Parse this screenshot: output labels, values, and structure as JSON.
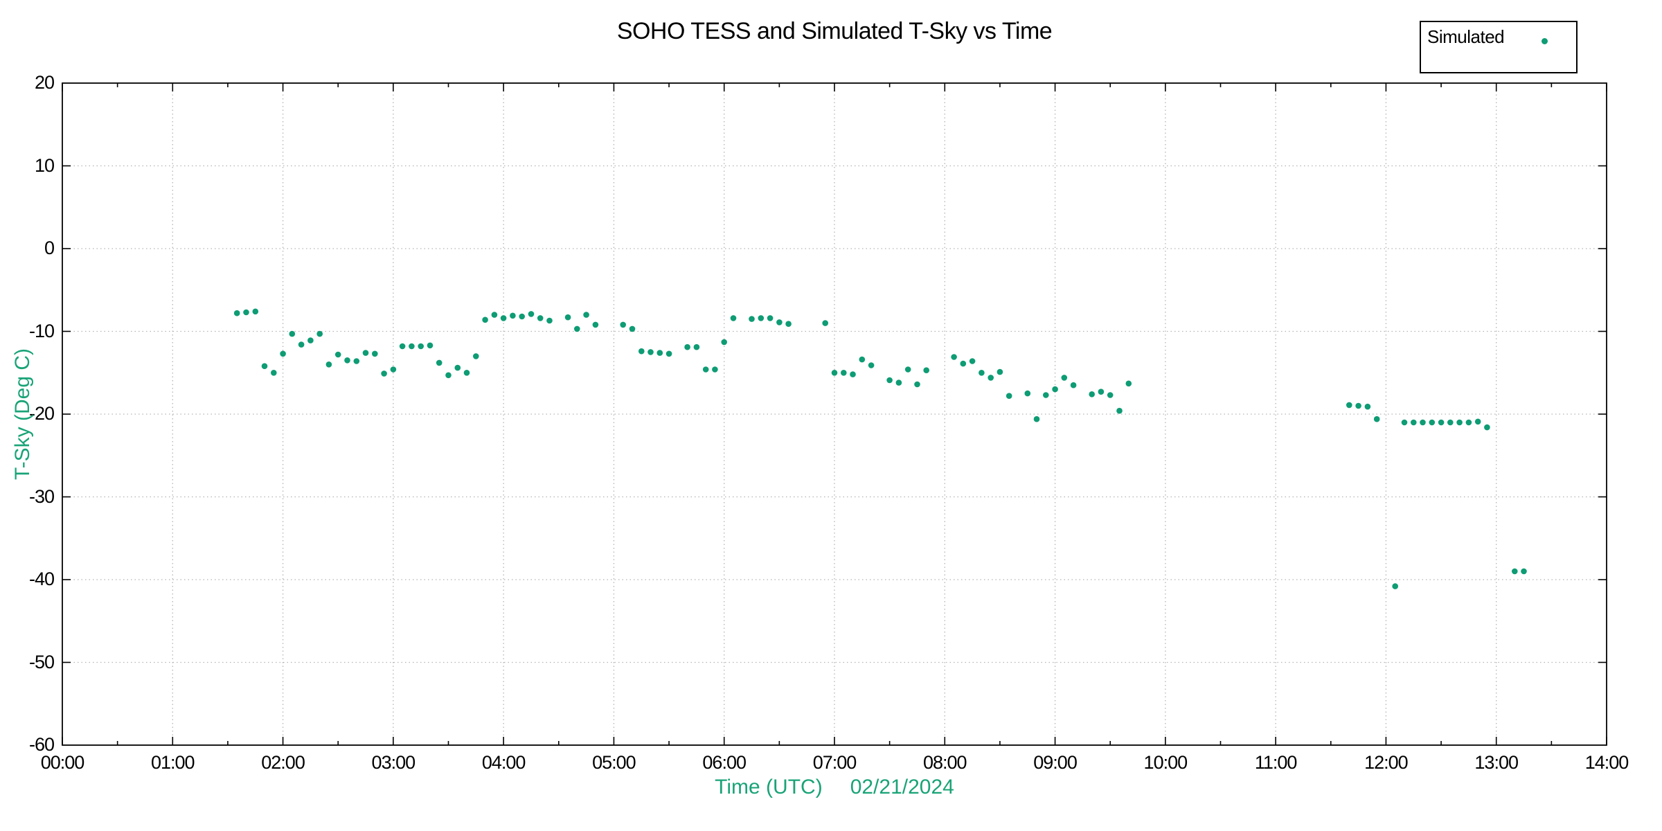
{
  "chart_data": {
    "type": "scatter",
    "title": "SOHO TESS and Simulated T-Sky vs Time",
    "xlabel": "Time (UTC)",
    "date_annotation": "02/21/2024",
    "ylabel": "T-Sky (Deg C)",
    "xlim_hours": [
      0,
      14
    ],
    "ylim": [
      -60,
      20
    ],
    "grid": true,
    "x_tick_labels": [
      "00:00",
      "01:00",
      "02:00",
      "03:00",
      "04:00",
      "05:00",
      "06:00",
      "07:00",
      "08:00",
      "09:00",
      "10:00",
      "11:00",
      "12:00",
      "13:00",
      "14:00"
    ],
    "y_tick_labels": [
      "20",
      "10",
      "0",
      "-10",
      "-20",
      "-30",
      "-40",
      "-50",
      "-60"
    ],
    "colors": {
      "points": "#0e9c74",
      "axis_label_green": "#19a377"
    },
    "legend": {
      "position": "top-right",
      "entries": [
        {
          "label": "Simulated",
          "marker": "dot",
          "color": "#0e9c74"
        }
      ]
    },
    "series": [
      {
        "name": "Simulated",
        "marker": "point",
        "color": "#0e9c74",
        "points": [
          [
            "01:35",
            -7.8
          ],
          [
            "01:40",
            -7.7
          ],
          [
            "01:45",
            -7.6
          ],
          [
            "01:50",
            -14.2
          ],
          [
            "01:55",
            -15.0
          ],
          [
            "02:00",
            -12.7
          ],
          [
            "02:05",
            -10.3
          ],
          [
            "02:10",
            -11.6
          ],
          [
            "02:15",
            -11.1
          ],
          [
            "02:20",
            -10.3
          ],
          [
            "02:25",
            -14.0
          ],
          [
            "02:30",
            -12.8
          ],
          [
            "02:35",
            -13.5
          ],
          [
            "02:40",
            -13.6
          ],
          [
            "02:45",
            -12.6
          ],
          [
            "02:50",
            -12.7
          ],
          [
            "02:55",
            -15.1
          ],
          [
            "03:00",
            -14.6
          ],
          [
            "03:05",
            -11.8
          ],
          [
            "03:10",
            -11.8
          ],
          [
            "03:15",
            -11.8
          ],
          [
            "03:20",
            -11.7
          ],
          [
            "03:25",
            -13.8
          ],
          [
            "03:30",
            -15.3
          ],
          [
            "03:35",
            -14.4
          ],
          [
            "03:40",
            -15.0
          ],
          [
            "03:45",
            -13.0
          ],
          [
            "03:50",
            -8.6
          ],
          [
            "03:55",
            -8.0
          ],
          [
            "04:00",
            -8.4
          ],
          [
            "04:05",
            -8.1
          ],
          [
            "04:10",
            -8.2
          ],
          [
            "04:15",
            -7.9
          ],
          [
            "04:20",
            -8.4
          ],
          [
            "04:25",
            -8.7
          ],
          [
            "04:35",
            -8.3
          ],
          [
            "04:40",
            -9.7
          ],
          [
            "04:45",
            -8.0
          ],
          [
            "04:50",
            -9.2
          ],
          [
            "05:05",
            -9.2
          ],
          [
            "05:10",
            -9.7
          ],
          [
            "05:15",
            -12.4
          ],
          [
            "05:20",
            -12.5
          ],
          [
            "05:25",
            -12.6
          ],
          [
            "05:30",
            -12.7
          ],
          [
            "05:40",
            -11.9
          ],
          [
            "05:45",
            -11.9
          ],
          [
            "05:50",
            -14.6
          ],
          [
            "05:55",
            -14.6
          ],
          [
            "06:00",
            -11.3
          ],
          [
            "06:05",
            -8.4
          ],
          [
            "06:15",
            -8.5
          ],
          [
            "06:20",
            -8.4
          ],
          [
            "06:25",
            -8.4
          ],
          [
            "06:30",
            -8.9
          ],
          [
            "06:35",
            -9.1
          ],
          [
            "06:55",
            -9.0
          ],
          [
            "07:00",
            -15.0
          ],
          [
            "07:05",
            -15.0
          ],
          [
            "07:10",
            -15.2
          ],
          [
            "07:15",
            -13.4
          ],
          [
            "07:20",
            -14.1
          ],
          [
            "07:30",
            -15.9
          ],
          [
            "07:35",
            -16.2
          ],
          [
            "07:40",
            -14.6
          ],
          [
            "07:45",
            -16.4
          ],
          [
            "07:50",
            -14.7
          ],
          [
            "08:05",
            -13.1
          ],
          [
            "08:10",
            -13.9
          ],
          [
            "08:15",
            -13.6
          ],
          [
            "08:20",
            -15.0
          ],
          [
            "08:25",
            -15.6
          ],
          [
            "08:30",
            -14.9
          ],
          [
            "08:35",
            -17.8
          ],
          [
            "08:45",
            -17.5
          ],
          [
            "08:50",
            -20.6
          ],
          [
            "08:55",
            -17.7
          ],
          [
            "09:00",
            -17.0
          ],
          [
            "09:05",
            -15.6
          ],
          [
            "09:10",
            -16.5
          ],
          [
            "09:20",
            -17.6
          ],
          [
            "09:25",
            -17.3
          ],
          [
            "09:30",
            -17.7
          ],
          [
            "09:35",
            -19.6
          ],
          [
            "09:40",
            -16.3
          ],
          [
            "11:40",
            -18.9
          ],
          [
            "11:45",
            -19.0
          ],
          [
            "11:50",
            -19.1
          ],
          [
            "11:55",
            -20.6
          ],
          [
            "12:05",
            -40.8
          ],
          [
            "12:10",
            -21.0
          ],
          [
            "12:15",
            -21.0
          ],
          [
            "12:20",
            -21.0
          ],
          [
            "12:25",
            -21.0
          ],
          [
            "12:30",
            -21.0
          ],
          [
            "12:35",
            -21.0
          ],
          [
            "12:40",
            -21.0
          ],
          [
            "12:45",
            -21.0
          ],
          [
            "12:50",
            -20.9
          ],
          [
            "12:55",
            -21.6
          ],
          [
            "13:10",
            -39.0
          ],
          [
            "13:15",
            -39.0
          ]
        ]
      }
    ]
  }
}
